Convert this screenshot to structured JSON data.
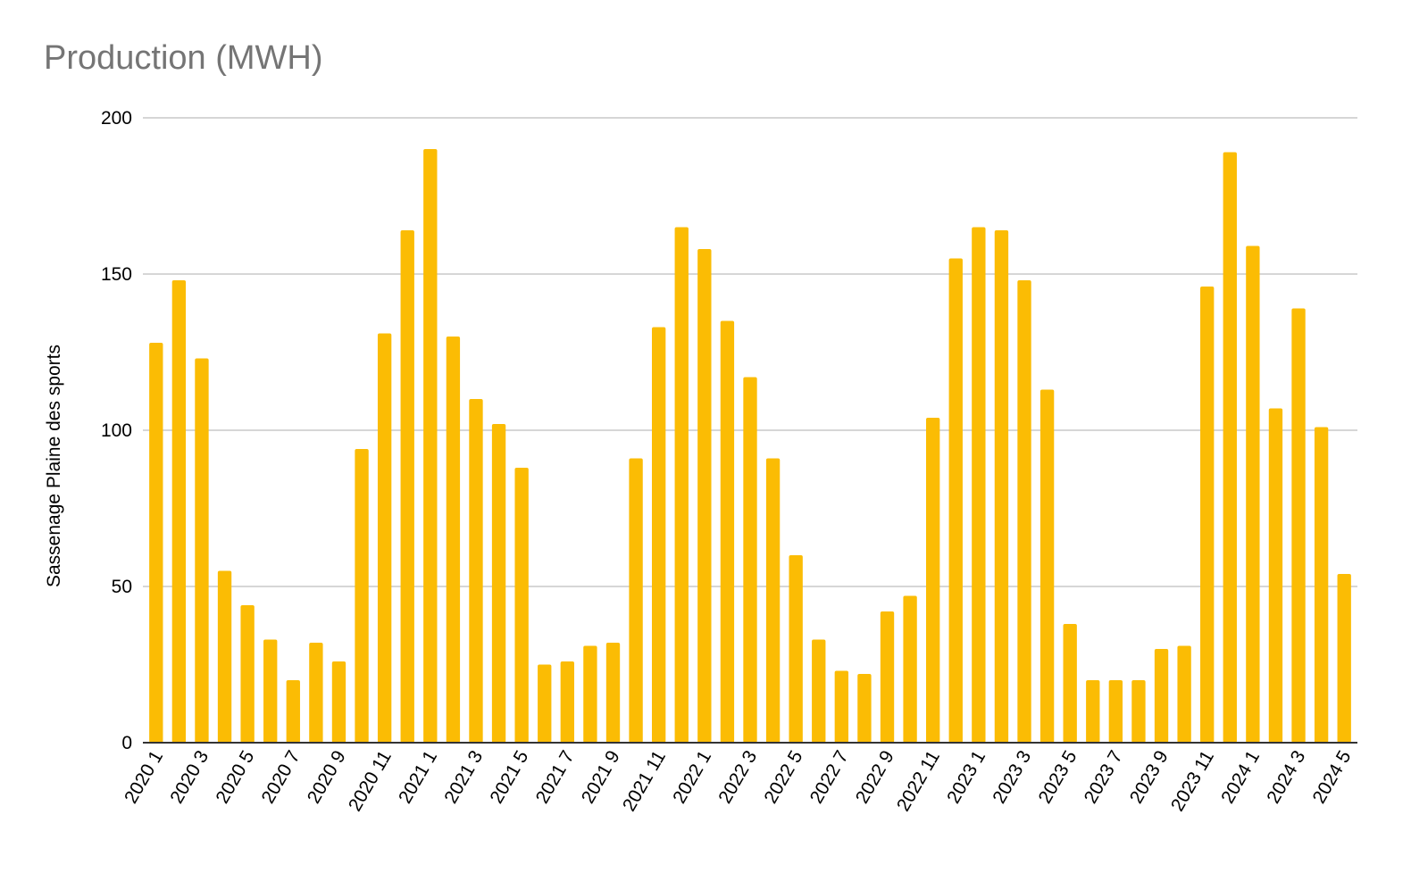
{
  "chart_data": {
    "type": "bar",
    "title": "Production (MWH)",
    "xlabel": "",
    "ylabel": "Sassenage Plaine des sports",
    "ylim": [
      0,
      200
    ],
    "yticks": [
      0,
      50,
      100,
      150,
      200
    ],
    "grid": true,
    "legend": "none",
    "bar_color": "#fbbc04",
    "categories": [
      "2020 1",
      "2020 2",
      "2020 3",
      "2020 4",
      "2020 5",
      "2020 6",
      "2020 7",
      "2020 8",
      "2020 9",
      "2020 10",
      "2020 11",
      "2020 12",
      "2021 1",
      "2021 2",
      "2021 3",
      "2021 4",
      "2021 5",
      "2021 6",
      "2021 7",
      "2021 8",
      "2021 9",
      "2021 10",
      "2021 11",
      "2021 12",
      "2022 1",
      "2022 2",
      "2022 3",
      "2022 4",
      "2022 5",
      "2022 6",
      "2022 7",
      "2022 8",
      "2022 9",
      "2022 10",
      "2022 11",
      "2022 12",
      "2023 1",
      "2023 2",
      "2023 3",
      "2023 4",
      "2023 5",
      "2023 6",
      "2023 7",
      "2023 8",
      "2023 9",
      "2023 10",
      "2023 11",
      "2023 12",
      "2024 1",
      "2024 2",
      "2024 3",
      "2024 4",
      "2024 5"
    ],
    "tick_labels": [
      "2020 1",
      "2020 3",
      "2020 5",
      "2020 7",
      "2020 9",
      "2020 11",
      "2021 1",
      "2021 3",
      "2021 5",
      "2021 7",
      "2021 9",
      "2021 11",
      "2022 1",
      "2022 3",
      "2022 5",
      "2022 7",
      "2022 9",
      "2022 11",
      "2023 1",
      "2023 3",
      "2023 5",
      "2023 7",
      "2023 9",
      "2023 11",
      "2024 1",
      "2024 3",
      "2024 5"
    ],
    "values": [
      128,
      148,
      123,
      55,
      44,
      33,
      20,
      32,
      26,
      94,
      131,
      164,
      190,
      130,
      110,
      102,
      88,
      25,
      26,
      31,
      32,
      91,
      133,
      165,
      158,
      135,
      117,
      91,
      60,
      33,
      23,
      22,
      42,
      47,
      104,
      155,
      165,
      164,
      148,
      113,
      38,
      20,
      20,
      20,
      30,
      31,
      146,
      189,
      159,
      107,
      139,
      101,
      54
    ]
  }
}
